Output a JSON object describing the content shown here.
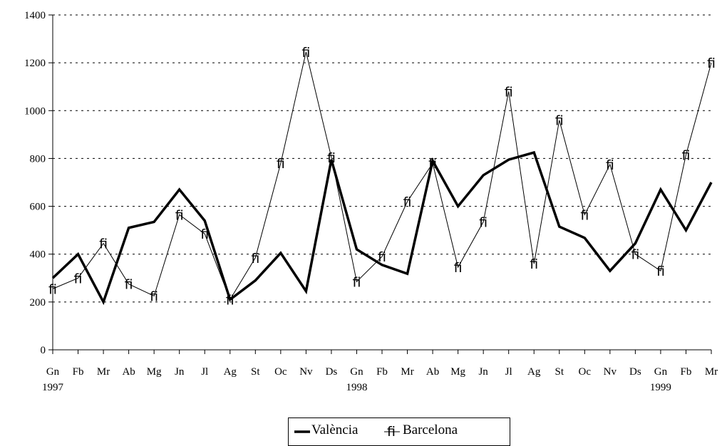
{
  "chart_data": {
    "type": "line",
    "title": "",
    "xlabel": "",
    "ylabel": "",
    "ylim": [
      0,
      1400
    ],
    "yticks": [
      0,
      200,
      400,
      600,
      800,
      1000,
      1200,
      1400
    ],
    "grid": "horizontal dashed",
    "legend_position": "bottom-center",
    "categories": [
      "Gn",
      "Fb",
      "Mr",
      "Ab",
      "Mg",
      "Jn",
      "Jl",
      "Ag",
      "St",
      "Oc",
      "Nv",
      "Ds",
      "Gn",
      "Fb",
      "Mr",
      "Ab",
      "Mg",
      "Jn",
      "Jl",
      "Ag",
      "St",
      "Oc",
      "Nv",
      "Ds",
      "Gn",
      "Fb",
      "Mr"
    ],
    "year_labels": [
      {
        "category_index": 0,
        "label": "1997"
      },
      {
        "category_index": 12,
        "label": "1998"
      },
      {
        "category_index": 24,
        "label": "1999"
      }
    ],
    "series": [
      {
        "name": "València",
        "style": "thick-line",
        "values": [
          300,
          400,
          200,
          510,
          535,
          670,
          540,
          210,
          290,
          405,
          245,
          795,
          420,
          355,
          318,
          790,
          600,
          730,
          795,
          825,
          515,
          468,
          330,
          445,
          670,
          500,
          700
        ]
      },
      {
        "name": "Barcelona",
        "style": "thin-line-marker",
        "marker": "fi",
        "values": [
          255,
          300,
          445,
          275,
          225,
          565,
          485,
          210,
          385,
          780,
          1245,
          805,
          285,
          390,
          620,
          780,
          345,
          535,
          1080,
          360,
          960,
          565,
          775,
          400,
          330,
          815,
          1200
        ]
      }
    ]
  },
  "legend": {
    "items": [
      {
        "label": "València",
        "symbol": "thick-line"
      },
      {
        "label": "Barcelona",
        "symbol": "fi"
      }
    ]
  }
}
